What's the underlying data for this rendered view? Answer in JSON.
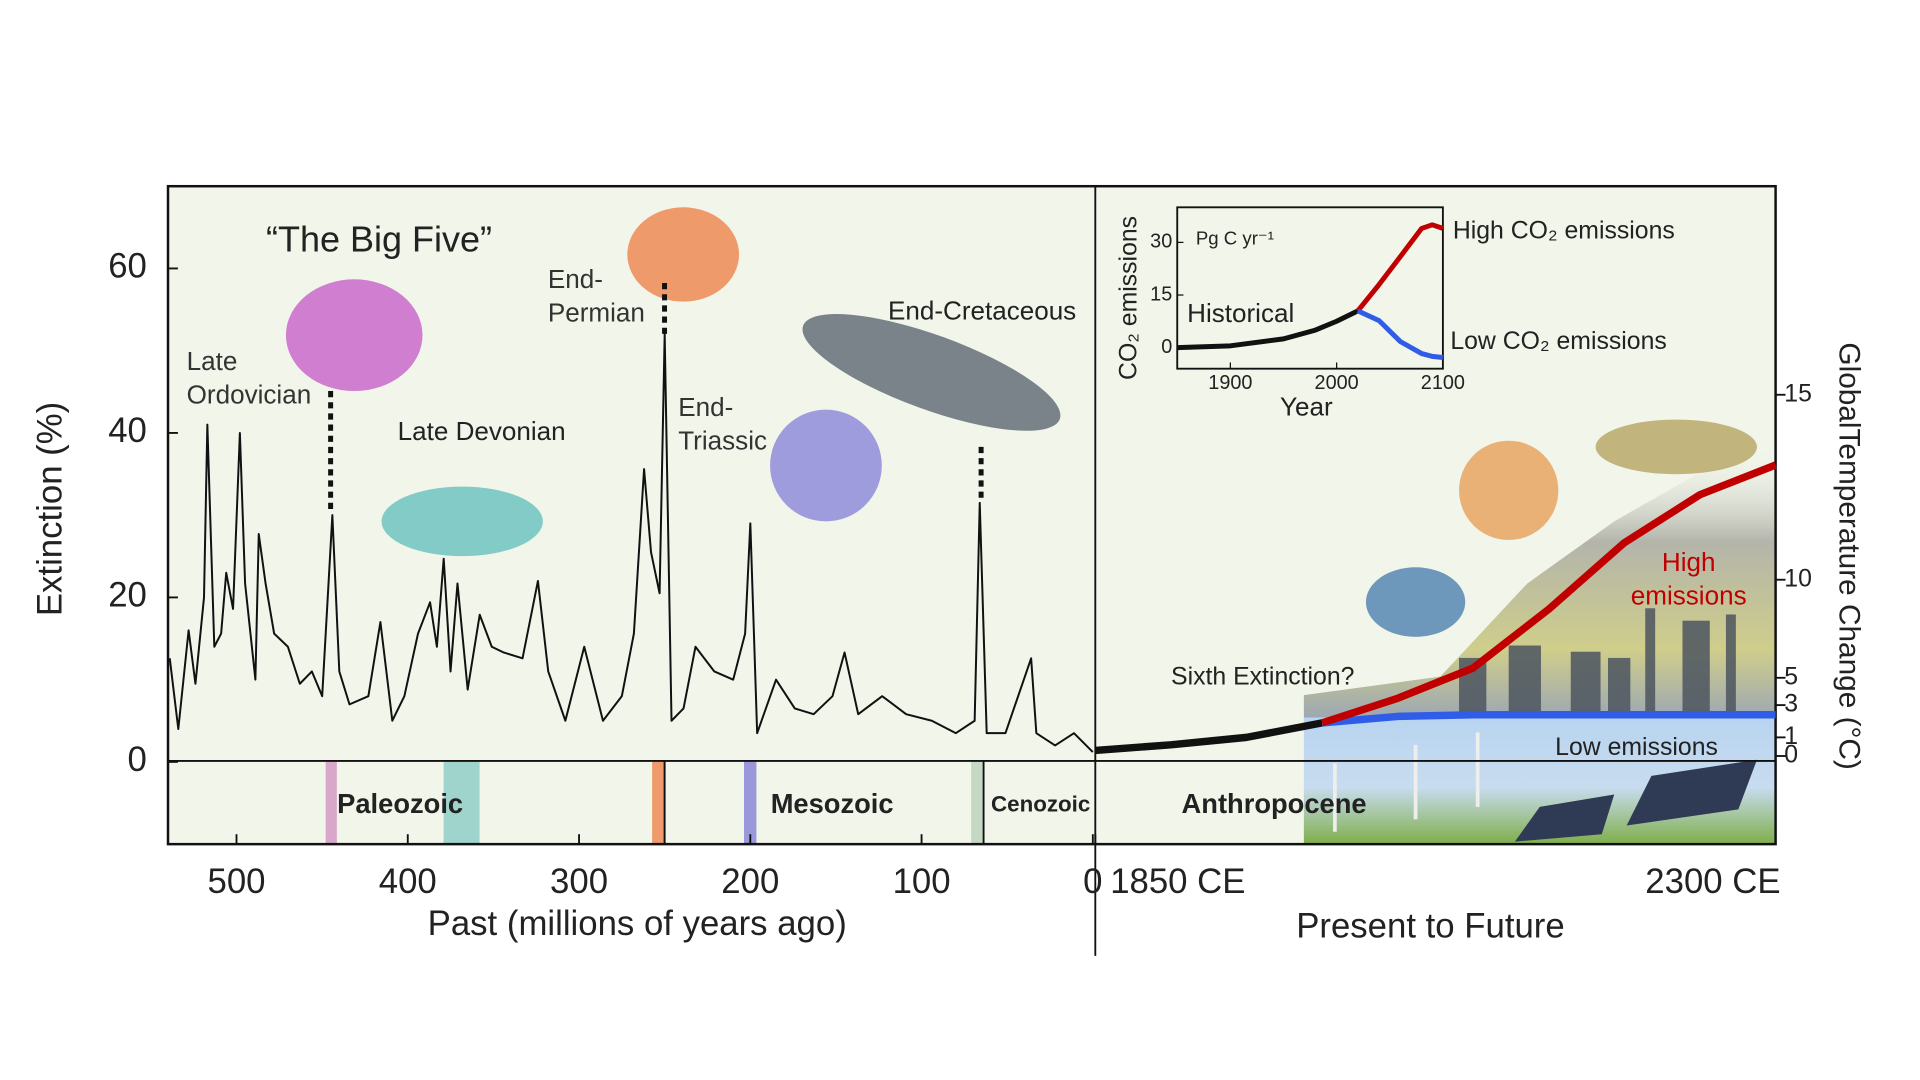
{
  "chart_data": [
    {
      "type": "line",
      "title": "“The Big Five”",
      "xlabel": "Past (millions of years ago)",
      "ylabel": "Extinction (%)",
      "xlim": [
        540,
        0
      ],
      "xticks": [
        500,
        400,
        300,
        200,
        100,
        0
      ],
      "ylim": [
        -10,
        70
      ],
      "yticks": [
        0,
        20,
        40,
        60
      ],
      "color": "#111111",
      "x": [
        539,
        534,
        528,
        524,
        519,
        517,
        513,
        509,
        506,
        502,
        498,
        495,
        489,
        487,
        483,
        478,
        470,
        463,
        456,
        450,
        444,
        440,
        434,
        423,
        416,
        409,
        402,
        394,
        387,
        383,
        379,
        375,
        371,
        365,
        358,
        351,
        344,
        333,
        324,
        318,
        308,
        297,
        286,
        275,
        268,
        262,
        258,
        253,
        250,
        246,
        239,
        232,
        221,
        210,
        203,
        200,
        196,
        185,
        174,
        163,
        152,
        145,
        137,
        123,
        109,
        94,
        80,
        69,
        66,
        62,
        51,
        36,
        33,
        22,
        11,
        0
      ],
      "values": [
        12.6,
        4,
        16,
        9.5,
        20,
        41,
        14,
        15.6,
        23,
        18.6,
        40,
        21.7,
        10,
        27.7,
        21.7,
        15.6,
        14,
        9.5,
        11,
        8,
        30,
        11,
        7,
        8,
        17,
        5,
        8,
        15.6,
        19.4,
        14,
        24.7,
        11,
        21.7,
        8.8,
        17.9,
        14,
        13.3,
        12.6,
        22,
        11,
        5,
        14,
        5,
        8,
        15.6,
        35.6,
        25.5,
        20.5,
        52,
        5,
        6.5,
        14,
        11,
        10,
        15.6,
        29,
        3.5,
        10,
        6.5,
        5.8,
        8,
        13.3,
        5.8,
        8,
        5.8,
        5,
        3.5,
        5,
        31.5,
        3.5,
        3.5,
        12.6,
        3.5,
        2,
        3.5,
        1.2
      ],
      "annotations": [
        "Late Ordovician",
        "Late Devonian",
        "End-Permian",
        "End-Triassic",
        "End-Cretaceous"
      ],
      "eras": [
        "Paleozoic",
        "Mesozoic",
        "Cenozoic"
      ]
    },
    {
      "type": "line",
      "xlabel": "Present to Future",
      "y2label": "GlobalTemperature Change (°C)",
      "annotation": "Sixth Extinction?",
      "era": "Anthropocene",
      "xlim": [
        1850,
        2300
      ],
      "xticks": [
        {
          "value": 1850,
          "label": "1850 CE"
        },
        {
          "value": 2300,
          "label": "2300 CE"
        }
      ],
      "y2lim": [
        -5,
        20
      ],
      "y2ticks": [
        0,
        1,
        3,
        5,
        10,
        15
      ],
      "x": [
        1850,
        1900,
        1950,
        2000,
        2050,
        2100,
        2150,
        2200,
        2250,
        2300
      ],
      "series": [
        {
          "color": "#111111",
          "axis": "y2",
          "values": [
            0.3,
            0.6,
            1,
            1.9,
            null,
            null,
            null,
            null,
            null,
            null
          ]
        },
        {
          "name": "Low emissions",
          "color": "#2f5de8",
          "axis": "y2",
          "values": [
            null,
            null,
            null,
            1.9,
            2.3,
            2.4,
            2.4,
            2.4,
            2.4,
            2.4
          ]
        },
        {
          "name": "High emissions",
          "color": "#c00000",
          "axis": "y2",
          "values": [
            null,
            null,
            null,
            1.9,
            3.5,
            5.5,
            8.5,
            11,
            12.3,
            13.1
          ]
        }
      ]
    },
    {
      "type": "line",
      "xlabel": "Year",
      "ylabel": "CO₂ emissions",
      "units": "Pg C yr⁻¹",
      "xlim": [
        1850,
        2100
      ],
      "xticks": [
        1900,
        2000,
        2100
      ],
      "ylim": [
        -6,
        40
      ],
      "yticks": [
        0,
        15,
        30
      ],
      "x": [
        1850,
        1900,
        1950,
        1980,
        2000,
        2020,
        2040,
        2060,
        2080,
        2090,
        2100
      ],
      "series": [
        {
          "name": "Historical",
          "color": "#111111",
          "values": [
            0,
            0.5,
            2.5,
            5,
            7.5,
            10.5,
            null,
            null,
            null,
            null,
            null
          ]
        },
        {
          "name": "High CO₂ emissions",
          "color": "#c00000",
          "values": [
            null,
            null,
            null,
            null,
            null,
            10.5,
            18,
            26,
            34,
            35,
            34
          ]
        },
        {
          "name": "Low CO₂ emissions",
          "color": "#2f5de8",
          "values": [
            null,
            null,
            null,
            null,
            null,
            10.5,
            7.7,
            1.7,
            -1.7,
            -2.5,
            -2.8
          ]
        }
      ]
    }
  ]
}
